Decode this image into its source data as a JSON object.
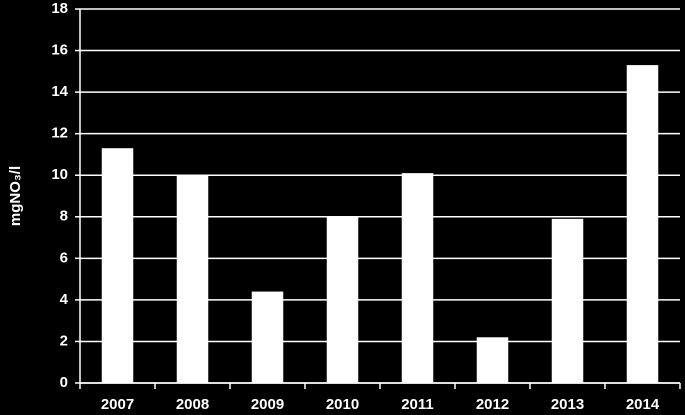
{
  "chart_data": {
    "type": "bar",
    "y_label": "mgNO₃/l",
    "categories": [
      "2007",
      "2008",
      "2009",
      "2010",
      "2011",
      "2012",
      "2013",
      "2014"
    ],
    "values": [
      11.3,
      10.0,
      4.4,
      8.0,
      10.1,
      2.2,
      7.9,
      15.3
    ],
    "color": "#ffffff",
    "ylim": [
      0,
      18
    ],
    "yticks": [
      0,
      2,
      4,
      6,
      8,
      10,
      12,
      14,
      16,
      18
    ],
    "grid": true
  }
}
